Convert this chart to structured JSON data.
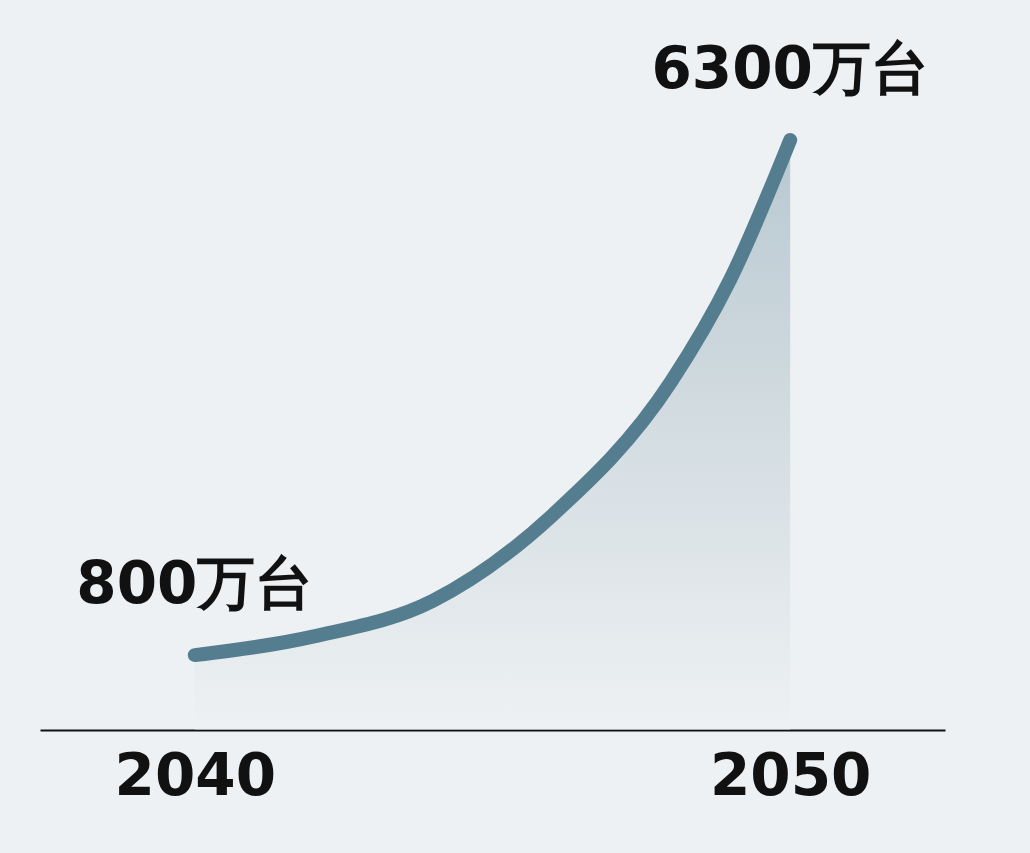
{
  "chart_data": {
    "type": "area",
    "x": [
      2040,
      2042,
      2044,
      2046,
      2048,
      2049,
      2050
    ],
    "series": [
      {
        "color": "#557d90",
        "values": [
          800,
          1000,
          1380,
          2290,
          3720,
          4820,
          6300
        ],
        "value_labels": [
          "800万台",
          null,
          null,
          null,
          null,
          null,
          "6300万台"
        ]
      }
    ],
    "xlim": [
      2037.4,
      2052.6
    ],
    "xticks": [
      2040,
      2050
    ],
    "tick_labels": "x",
    "grid": false
  }
}
